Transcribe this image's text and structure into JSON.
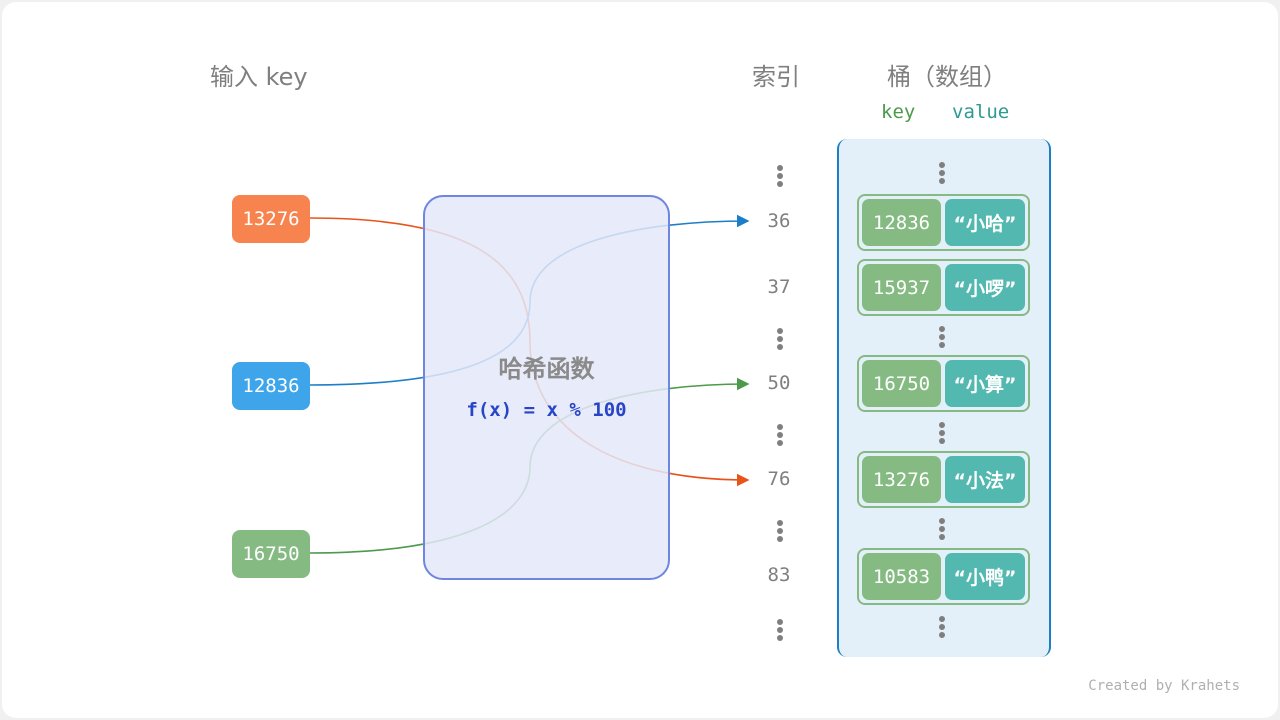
{
  "headers": {
    "input_key": "输入 key",
    "index": "索引",
    "bucket": "桶（数组）",
    "key": "key",
    "value": "value"
  },
  "inputs": [
    {
      "key": "13276",
      "color": "#f7844f"
    },
    {
      "key": "12836",
      "color": "#3ea5ea"
    },
    {
      "key": "16750",
      "color": "#85bb83"
    }
  ],
  "hash_function": {
    "title": "哈希函数",
    "formula": "f(x) = x % 100"
  },
  "indices": [
    "36",
    "37",
    "50",
    "76",
    "83"
  ],
  "buckets": [
    {
      "key": "12836",
      "value": "“小哈”"
    },
    {
      "key": "15937",
      "value": "“小啰”"
    },
    {
      "key": "16750",
      "value": "“小算”"
    },
    {
      "key": "13276",
      "value": "“小法”"
    },
    {
      "key": "10583",
      "value": "“小鸭”"
    }
  ],
  "mappings": [
    {
      "from": "13276",
      "to": "76",
      "color": "#e8531a"
    },
    {
      "from": "12836",
      "to": "36",
      "color": "#1b7fc8"
    },
    {
      "from": "16750",
      "to": "50",
      "color": "#4c9a4a"
    }
  ],
  "credit": "Created by Krahets"
}
